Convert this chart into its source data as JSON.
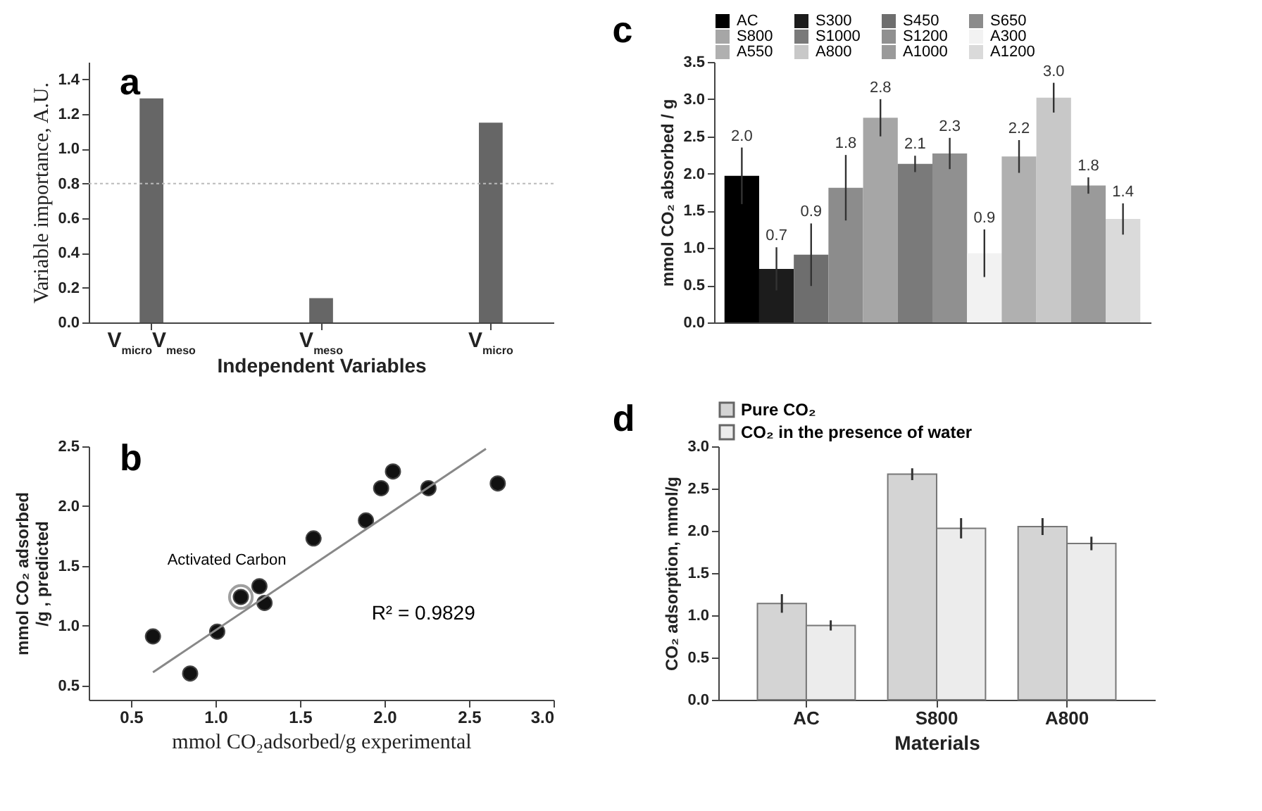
{
  "chart_data": [
    {
      "type": "bar",
      "title": "a",
      "categories": [
        "V$_{micro}$V$_{meso}$",
        "V$_{meso}$",
        "V$_{micro}$"
      ],
      "values": [
        1.29,
        0.14,
        1.15
      ],
      "color": "#666666",
      "xlabel": "Independent Variables",
      "ylabel": "Variable importance, A.U.",
      "ylim": [
        0,
        1.5
      ],
      "yticks": [
        {
          "value": 0,
          "label": "0.0"
        },
        0.2,
        0.4,
        0.6,
        0.8,
        {
          "value": 1,
          "label": "1.0"
        },
        1.2,
        1.4
      ],
      "ref_lines": [
        {
          "axis": "y",
          "value": 0.8,
          "line_style": "dotted",
          "color": "#bbbbbb"
        }
      ]
    },
    {
      "type": "bar",
      "title": "c",
      "categories": [
        null,
        null,
        null,
        null,
        null,
        null,
        null,
        null,
        null,
        null,
        null,
        null
      ],
      "series": [
        {
          "name": "AC",
          "color": "#000000",
          "values": [
            1.97,
            null,
            null,
            null,
            null,
            null,
            null,
            null,
            null,
            null,
            null,
            null
          ],
          "errors": [
            0.38,
            null,
            null,
            null,
            null,
            null,
            null,
            null,
            null,
            null,
            null,
            null
          ],
          "value_labels": [
            "2.0",
            null,
            null,
            null,
            null,
            null,
            null,
            null,
            null,
            null,
            null,
            null
          ]
        },
        {
          "name": "S300",
          "color": "#1c1c1c",
          "values": [
            null,
            0.72,
            null,
            null,
            null,
            null,
            null,
            null,
            null,
            null,
            null,
            null
          ],
          "errors": [
            null,
            0.29,
            null,
            null,
            null,
            null,
            null,
            null,
            null,
            null,
            null,
            null
          ],
          "value_labels": [
            null,
            "0.7",
            null,
            null,
            null,
            null,
            null,
            null,
            null,
            null,
            null,
            null
          ]
        },
        {
          "name": "S450",
          "color": "#6e6e6e",
          "values": [
            null,
            null,
            0.91,
            null,
            null,
            null,
            null,
            null,
            null,
            null,
            null,
            null
          ],
          "errors": [
            null,
            null,
            0.42,
            null,
            null,
            null,
            null,
            null,
            null,
            null,
            null,
            null
          ],
          "value_labels": [
            null,
            null,
            "0.9",
            null,
            null,
            null,
            null,
            null,
            null,
            null,
            null,
            null
          ]
        },
        {
          "name": "S650",
          "color": "#8c8c8c",
          "values": [
            null,
            null,
            null,
            1.81,
            null,
            null,
            null,
            null,
            null,
            null,
            null,
            null
          ],
          "errors": [
            null,
            null,
            null,
            0.44,
            null,
            null,
            null,
            null,
            null,
            null,
            null,
            null
          ],
          "value_labels": [
            null,
            null,
            null,
            "1.8",
            null,
            null,
            null,
            null,
            null,
            null,
            null,
            null
          ]
        },
        {
          "name": "S800",
          "color": "#a6a6a6",
          "values": [
            null,
            null,
            null,
            null,
            2.75,
            null,
            null,
            null,
            null,
            null,
            null,
            null
          ],
          "errors": [
            null,
            null,
            null,
            null,
            0.25,
            null,
            null,
            null,
            null,
            null,
            null,
            null
          ],
          "value_labels": [
            null,
            null,
            null,
            null,
            "2.8",
            null,
            null,
            null,
            null,
            null,
            null,
            null
          ]
        },
        {
          "name": "S1000",
          "color": "#7a7a7a",
          "values": [
            null,
            null,
            null,
            null,
            null,
            2.13,
            null,
            null,
            null,
            null,
            null,
            null
          ],
          "errors": [
            null,
            null,
            null,
            null,
            null,
            0.11,
            null,
            null,
            null,
            null,
            null,
            null
          ],
          "value_labels": [
            null,
            null,
            null,
            null,
            null,
            "2.1",
            null,
            null,
            null,
            null,
            null,
            null
          ]
        },
        {
          "name": "S1200",
          "color": "#909090",
          "values": [
            null,
            null,
            null,
            null,
            null,
            null,
            2.27,
            null,
            null,
            null,
            null,
            null
          ],
          "errors": [
            null,
            null,
            null,
            null,
            null,
            null,
            0.21,
            null,
            null,
            null,
            null,
            null
          ],
          "value_labels": [
            null,
            null,
            null,
            null,
            null,
            null,
            "2.3",
            null,
            null,
            null,
            null,
            null
          ]
        },
        {
          "name": "A300",
          "color": "#f2f2f2",
          "values": [
            null,
            null,
            null,
            null,
            null,
            null,
            null,
            0.93,
            null,
            null,
            null,
            null
          ],
          "errors": [
            null,
            null,
            null,
            null,
            null,
            null,
            null,
            0.32,
            null,
            null,
            null,
            null
          ],
          "value_labels": [
            null,
            null,
            null,
            null,
            null,
            null,
            null,
            "0.9",
            null,
            null,
            null,
            null
          ]
        },
        {
          "name": "A550",
          "color": "#b0b0b0",
          "values": [
            null,
            null,
            null,
            null,
            null,
            null,
            null,
            null,
            2.23,
            null,
            null,
            null
          ],
          "errors": [
            null,
            null,
            null,
            null,
            null,
            null,
            null,
            null,
            0.22,
            null,
            null,
            null
          ],
          "value_labels": [
            null,
            null,
            null,
            null,
            null,
            null,
            null,
            null,
            "2.2",
            null,
            null,
            null
          ]
        },
        {
          "name": "A800",
          "color": "#c8c8c8",
          "values": [
            null,
            null,
            null,
            null,
            null,
            null,
            null,
            null,
            null,
            3.02,
            null,
            null
          ],
          "errors": [
            null,
            null,
            null,
            null,
            null,
            null,
            null,
            null,
            null,
            0.2,
            null,
            null
          ],
          "value_labels": [
            null,
            null,
            null,
            null,
            null,
            null,
            null,
            null,
            null,
            "3.0",
            null,
            null
          ]
        },
        {
          "name": "A1000",
          "color": "#9a9a9a",
          "values": [
            null,
            null,
            null,
            null,
            null,
            null,
            null,
            null,
            null,
            null,
            1.84,
            null
          ],
          "errors": [
            null,
            null,
            null,
            null,
            null,
            null,
            null,
            null,
            null,
            null,
            0.11,
            null
          ],
          "value_labels": [
            null,
            null,
            null,
            null,
            null,
            null,
            null,
            null,
            null,
            null,
            "1.8",
            null
          ]
        },
        {
          "name": "A1200",
          "color": "#dadada",
          "values": [
            null,
            null,
            null,
            null,
            null,
            null,
            null,
            null,
            null,
            null,
            null,
            1.39
          ],
          "errors": [
            null,
            null,
            null,
            null,
            null,
            null,
            null,
            null,
            null,
            null,
            null,
            0.21
          ],
          "value_labels": [
            null,
            null,
            null,
            null,
            null,
            null,
            null,
            null,
            null,
            null,
            null,
            "1.4"
          ]
        }
      ],
      "ylabel": "mmol CO₂ absorbed / g",
      "ylim": [
        0,
        3.5
      ],
      "yticks": [
        {
          "value": 0,
          "label": "0.0"
        },
        0.5,
        {
          "value": 1,
          "label": "1.0"
        },
        1.5,
        {
          "value": 2,
          "label": "2.0"
        },
        2.5,
        {
          "value": 3,
          "label": "3.0"
        },
        3.5
      ],
      "tick_labels": "y",
      "legend": "top"
    },
    {
      "type": "scatter",
      "title": "b",
      "series": [
        {
          "color": "#111111",
          "marker": "circle",
          "x": [
            0.63,
            0.85,
            1.01,
            1.15,
            1.26,
            1.29,
            1.58,
            1.89,
            1.98,
            2.05,
            2.26,
            2.67
          ],
          "values": [
            0.91,
            0.6,
            0.95,
            1.24,
            1.33,
            1.19,
            1.73,
            1.88,
            2.15,
            2.29,
            2.15,
            2.19
          ]
        },
        {
          "type": "line",
          "color": "#888888",
          "x": [
            0.63,
            2.6
          ],
          "values": [
            0.61,
            2.48
          ]
        }
      ],
      "xlabel": "mmol CO₂adsorbed/g experimental",
      "ylabel": "mmol CO₂ adsorbed /g , predicted",
      "xlim": [
        0.25,
        3.0
      ],
      "xticks": [
        0.5,
        {
          "value": 1,
          "label": "1.0"
        },
        1.5,
        {
          "value": 2,
          "label": "2.0"
        },
        2.5,
        {
          "value": 3,
          "label": "3.0"
        }
      ],
      "ylim": [
        0.38,
        2.5
      ],
      "yticks": [
        0.5,
        {
          "value": 1,
          "label": "1.0"
        },
        1.5,
        {
          "value": 2,
          "label": "2.0"
        },
        2.5
      ],
      "annotations": [
        {
          "text": "Activated Carbon",
          "x": 1.15,
          "y": 1.24
        },
        "R² = 0.9829"
      ]
    },
    {
      "type": "bar",
      "title": "d",
      "categories": [
        "AC",
        "S800",
        "A800"
      ],
      "series": [
        {
          "name": "Pure CO₂",
          "color": "#d4d4d4",
          "values": [
            1.14,
            2.67,
            2.05
          ],
          "errors": [
            0.11,
            0.07,
            0.1
          ]
        },
        {
          "name": "CO₂  in the presence of water",
          "color": "#ececec",
          "values": [
            0.88,
            2.03,
            1.85
          ],
          "errors": [
            0.06,
            0.12,
            0.08
          ]
        }
      ],
      "xlabel": "Materials",
      "ylabel": "CO₂ adsorption, mmol/g",
      "ylim": [
        0,
        3
      ],
      "yticks": [
        {
          "value": 0,
          "label": "0.0"
        },
        0.5,
        {
          "value": 1,
          "label": "1.0"
        },
        1.5,
        {
          "value": 2,
          "label": "2.0"
        },
        2.5,
        {
          "value": 3,
          "label": "3.0"
        }
      ],
      "legend": "top"
    }
  ]
}
